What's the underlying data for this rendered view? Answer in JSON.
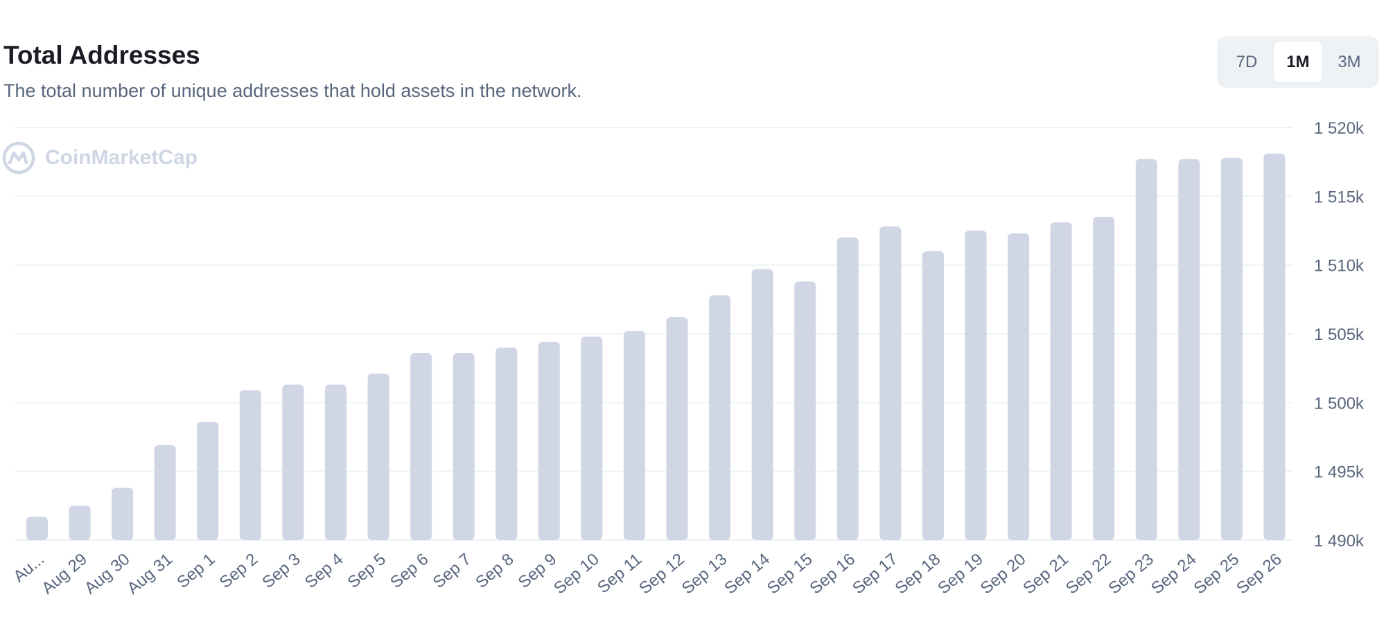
{
  "header": {
    "title": "Total Addresses",
    "subtitle": "The total number of unique addresses that hold assets in the network."
  },
  "range_toggle": {
    "options": [
      "7D",
      "1M",
      "3M"
    ],
    "selected": "1M"
  },
  "watermark": {
    "text": "CoinMarketCap"
  },
  "colors": {
    "bar": "#d0d6e5",
    "grid": "#eff2f5",
    "text_secondary": "#58667e",
    "text_primary": "#1a1c24"
  },
  "chart_data": {
    "type": "bar",
    "categories": [
      "Au...",
      "Aug 29",
      "Aug 30",
      "Aug 31",
      "Sep 1",
      "Sep 2",
      "Sep 3",
      "Sep 4",
      "Sep 5",
      "Sep 6",
      "Sep 7",
      "Sep 8",
      "Sep 9",
      "Sep 10",
      "Sep 11",
      "Sep 12",
      "Sep 13",
      "Sep 14",
      "Sep 15",
      "Sep 16",
      "Sep 17",
      "Sep 18",
      "Sep 19",
      "Sep 20",
      "Sep 21",
      "Sep 22",
      "Sep 23",
      "Sep 24",
      "Sep 25",
      "Sep 26"
    ],
    "values": [
      1491700,
      1492500,
      1493800,
      1496900,
      1498600,
      1500900,
      1501300,
      1501300,
      1502100,
      1503600,
      1503600,
      1504000,
      1504400,
      1504800,
      1505200,
      1506200,
      1507800,
      1509700,
      1508800,
      1512000,
      1512800,
      1511000,
      1512500,
      1512300,
      1513100,
      1513500,
      1517700,
      1517700,
      1517800,
      1518100
    ],
    "ylim": [
      1490000,
      1520000
    ],
    "yticks": [
      1490000,
      1495000,
      1500000,
      1505000,
      1510000,
      1515000,
      1520000
    ],
    "ytick_labels": [
      "1 490k",
      "1 495k",
      "1 500k",
      "1 505k",
      "1 510k",
      "1 515k",
      "1 520k"
    ],
    "y_axis_position": "right",
    "grid": true,
    "legend": "none"
  }
}
